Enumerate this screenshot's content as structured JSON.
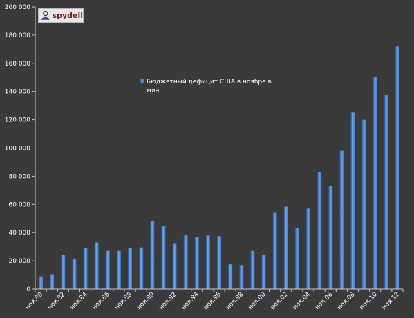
{
  "watermark": {
    "text": "spydell",
    "icon": "user-icon"
  },
  "colors": {
    "background": "#3a3a3a",
    "bar": "#3a78c8",
    "bar_light": "#6fa6ea",
    "bar_dark": "#1f4f90",
    "axis": "#c8c8c8",
    "text": "#ffffff"
  },
  "chart_data": {
    "type": "bar",
    "title": "",
    "xlabel": "",
    "ylabel": "",
    "ylim": [
      0,
      200000
    ],
    "y_ticks": [
      0,
      20000,
      40000,
      60000,
      80000,
      100000,
      120000,
      140000,
      160000,
      180000,
      200000
    ],
    "y_tick_labels": [
      "0",
      "20 000",
      "40 000",
      "60 000",
      "80 000",
      "100 000",
      "120 000",
      "140 000",
      "160 000",
      "180 000",
      "200 000"
    ],
    "legend_label": "Бюджетный  дефицит  США в ноябре  в млн",
    "legend_lines": [
      "Бюджетный  дефицит  США в ноябре  в",
      "млн"
    ],
    "legend_position": "center-top",
    "grid": false,
    "categories": [
      "ноя.80",
      "ноя.81",
      "ноя.82",
      "ноя.83",
      "ноя.84",
      "ноя.85",
      "ноя.86",
      "ноя.87",
      "ноя.88",
      "ноя.89",
      "ноя.90",
      "ноя.91",
      "ноя.92",
      "ноя.93",
      "ноя.94",
      "ноя.95",
      "ноя.96",
      "ноя.97",
      "ноя.98",
      "ноя.99",
      "ноя.00",
      "ноя.01",
      "ноя.02",
      "ноя.03",
      "ноя.04",
      "ноя.05",
      "ноя.06",
      "ноя.07",
      "ноя.08",
      "ноя.09",
      "ноя.10",
      "ноя.11",
      "ноя.12"
    ],
    "x_tick_labels": [
      "ноя.80",
      "ноя.82",
      "ноя.84",
      "ноя.86",
      "ноя.88",
      "ноя.90",
      "ноя.92",
      "ноя.94",
      "ноя.96",
      "ноя.98",
      "ноя.00",
      "ноя.02",
      "ноя.04",
      "ноя.06",
      "ноя.08",
      "ноя.10",
      "ноя.12"
    ],
    "series": [
      {
        "name": "Бюджетный  дефицит  США в ноябре  в млн",
        "values": [
          9000,
          10500,
          24000,
          21000,
          29000,
          33000,
          27000,
          27000,
          29000,
          29500,
          48000,
          44500,
          32500,
          38000,
          37000,
          38000,
          37500,
          17500,
          17000,
          27000,
          24000,
          54000,
          58500,
          43000,
          57000,
          83000,
          73000,
          98000,
          125000,
          120000,
          150500,
          137500,
          172000
        ]
      }
    ]
  }
}
